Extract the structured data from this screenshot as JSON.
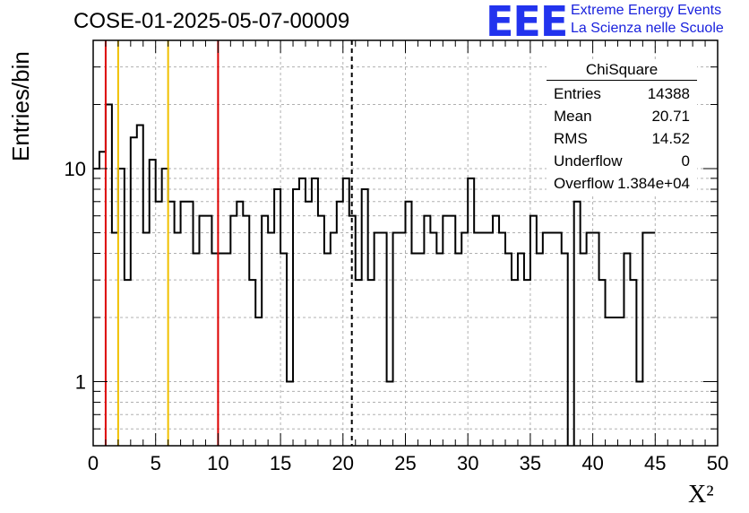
{
  "title": "COSE-01-2025-05-07-00009",
  "logo": {
    "text": "EEE",
    "line1": "Extreme Energy Events",
    "line2": "La Scienza nelle Scuole"
  },
  "colors": {
    "hist": "#000000",
    "red_line": "#dd0000",
    "yellow_line": "#f0c000",
    "grid": "#b0b0b0",
    "logo": "#2233ee"
  },
  "stats": {
    "name": "ChiSquare",
    "rows": [
      {
        "label": "Entries",
        "value": "14388"
      },
      {
        "label": "Mean",
        "value": "20.71"
      },
      {
        "label": "RMS",
        "value": "14.52"
      },
      {
        "label": "Underflow",
        "value": "0"
      },
      {
        "label": "Overflow",
        "value": "1.384e+04"
      }
    ]
  },
  "chart_data": {
    "type": "histogram",
    "xlabel": "X²",
    "ylabel": "Entries/bin",
    "xlim": [
      0,
      50
    ],
    "ylim": [
      0.5,
      40
    ],
    "yscale": "log",
    "grid": true,
    "bin_width": 0.5,
    "x_ticks": [
      0,
      5,
      10,
      15,
      20,
      25,
      30,
      35,
      40,
      45,
      50
    ],
    "x_tick_labels": [
      "0",
      "5",
      "10",
      "15",
      "20",
      "25",
      "30",
      "35",
      "40",
      "45",
      "50"
    ],
    "y_ticks": [
      1,
      10
    ],
    "y_tick_labels": [
      "1",
      "10"
    ],
    "values": [
      10,
      12,
      20,
      5,
      10,
      3,
      14,
      16,
      5,
      11,
      7,
      10,
      7,
      5,
      7,
      7,
      4,
      6,
      6,
      4,
      4,
      4,
      6,
      7,
      6,
      3,
      2,
      6,
      5,
      8,
      4,
      1,
      8,
      9,
      7,
      9,
      6,
      4,
      5,
      7,
      9,
      6,
      3,
      8,
      3,
      5,
      5,
      1,
      5,
      5,
      7,
      4,
      4,
      6,
      5,
      4,
      6,
      6,
      4,
      5,
      9,
      5,
      5,
      5,
      6,
      5,
      4,
      3,
      4,
      3,
      6,
      4,
      5,
      5,
      5,
      4,
      0,
      7,
      4,
      5,
      5,
      3,
      2,
      2,
      2,
      4,
      3,
      1,
      5,
      5
    ],
    "vlines": [
      {
        "x": 1,
        "color": "red",
        "style": "solid"
      },
      {
        "x": 2,
        "color": "yellow",
        "style": "solid"
      },
      {
        "x": 6,
        "color": "yellow",
        "style": "solid"
      },
      {
        "x": 10,
        "color": "red",
        "style": "solid"
      },
      {
        "x": 20.71,
        "color": "black",
        "style": "dashed"
      }
    ]
  }
}
